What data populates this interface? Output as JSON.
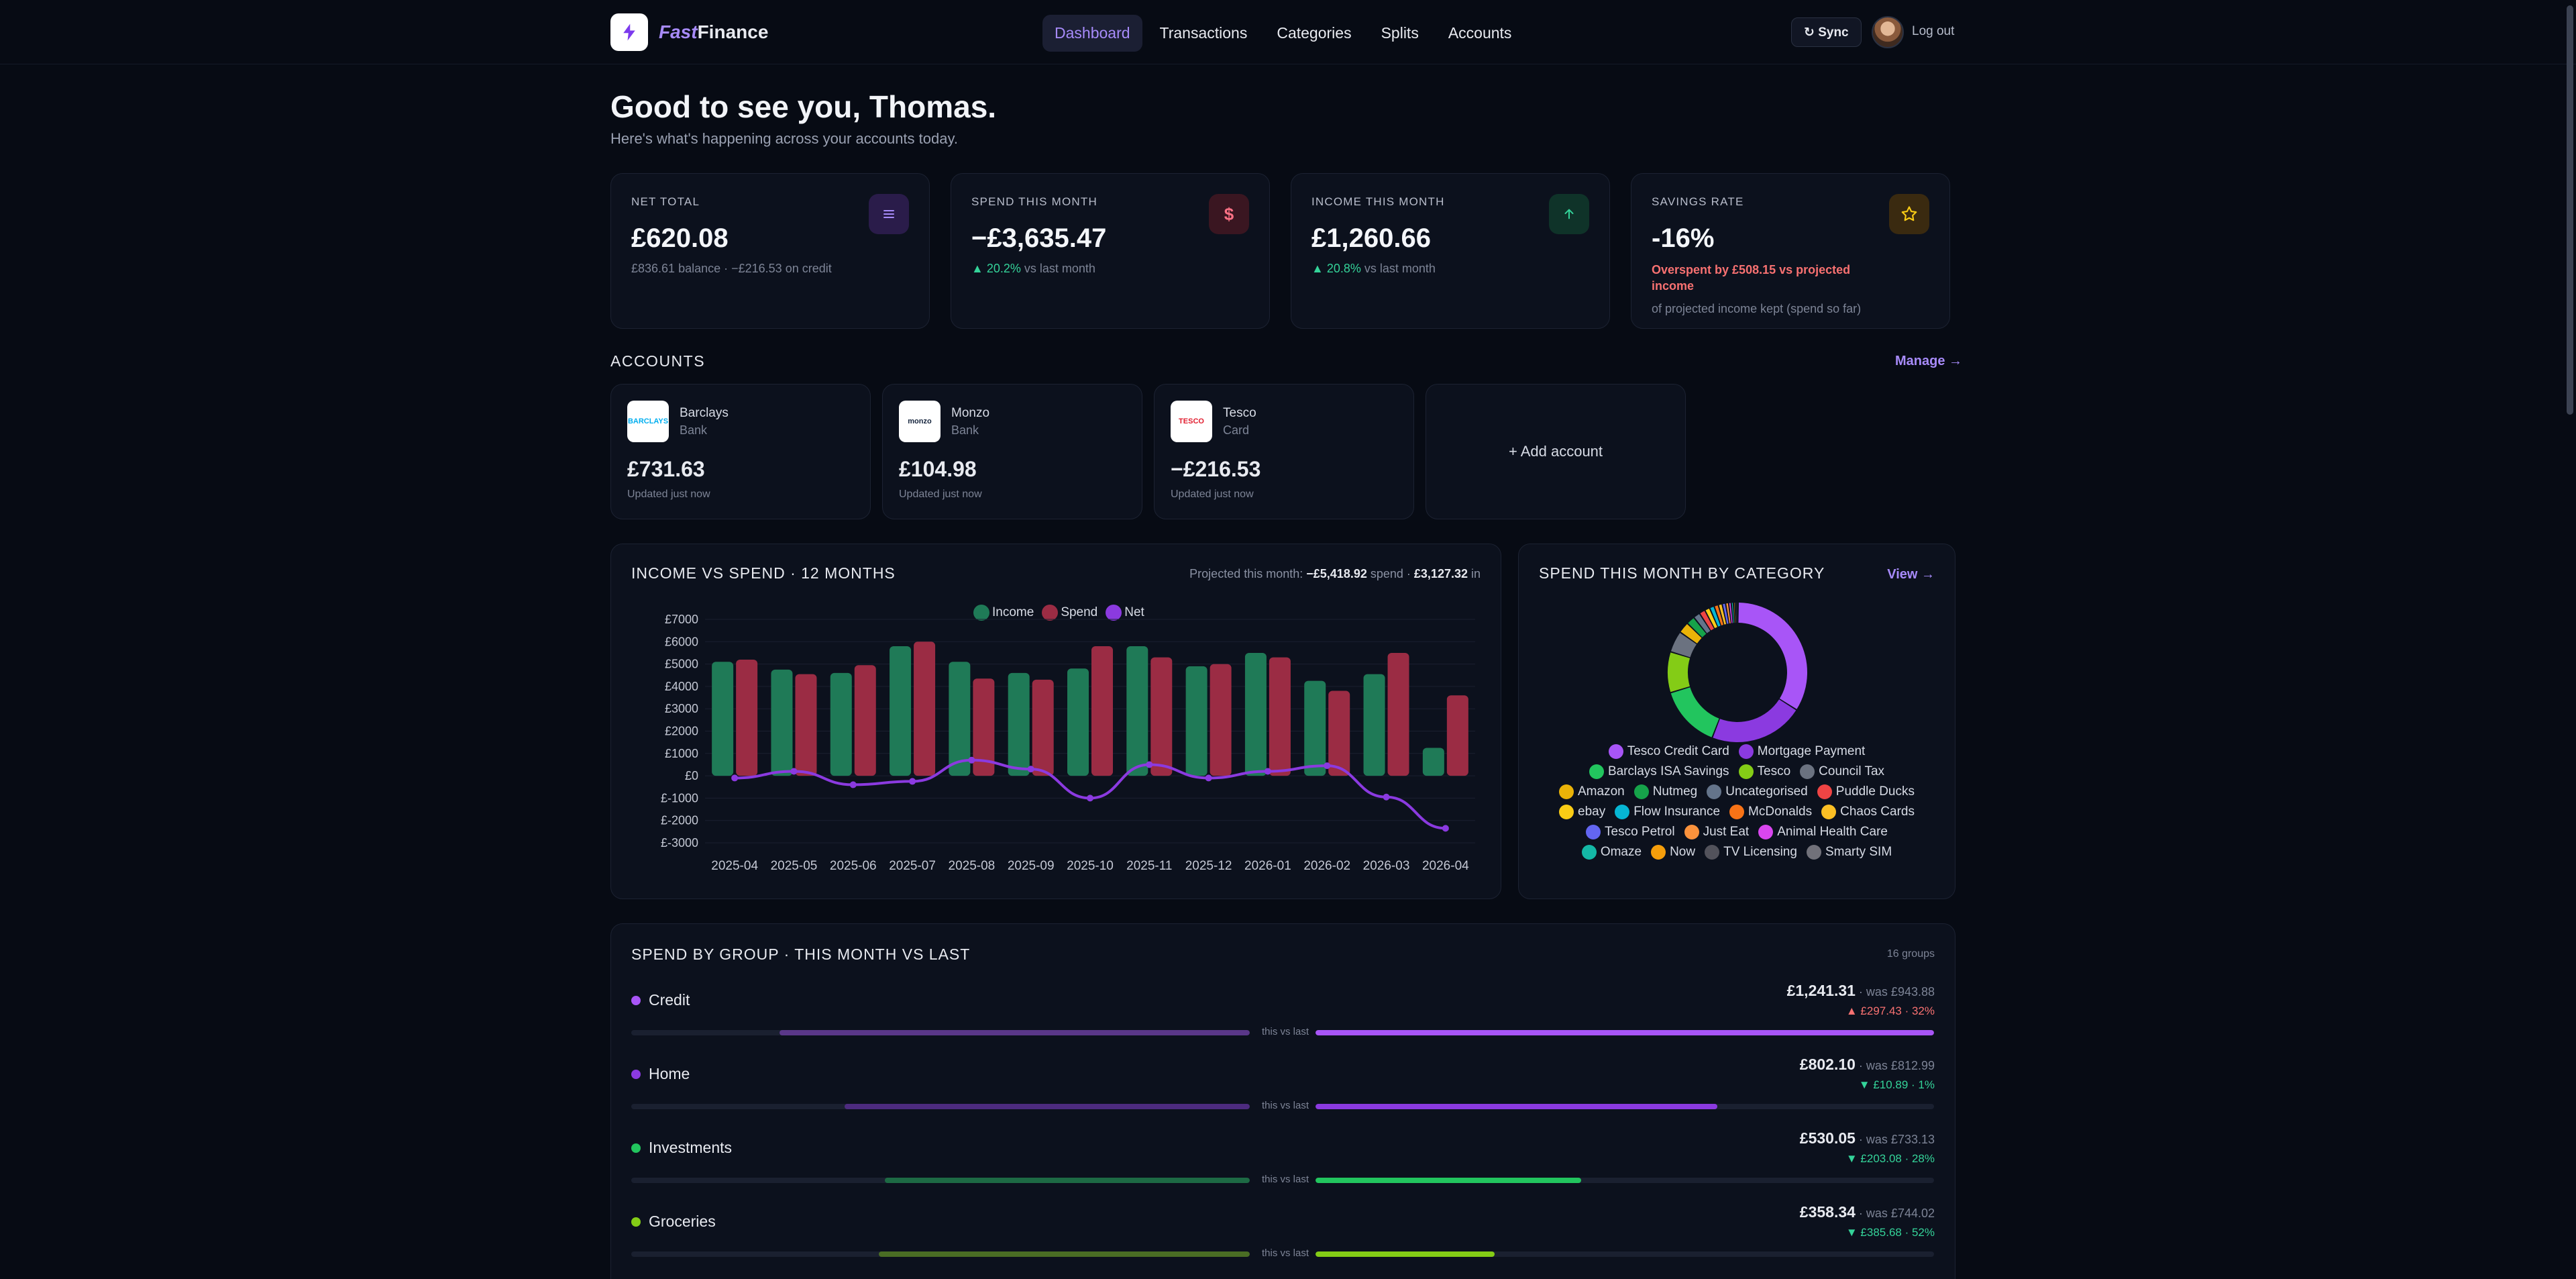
{
  "app": {
    "brand_fast": "Fast",
    "brand_finance": "Finance"
  },
  "nav": [
    {
      "label": "Dashboard",
      "active": true
    },
    {
      "label": "Transactions"
    },
    {
      "label": "Categories"
    },
    {
      "label": "Splits"
    },
    {
      "label": "Accounts"
    }
  ],
  "header": {
    "sync_label": "↻ Sync",
    "logout_label": "Log out"
  },
  "greeting": {
    "title": "Good to see you, Thomas.",
    "subtitle": "Here's what's happening across your accounts today."
  },
  "stats": {
    "net_total": {
      "label": "NET TOTAL",
      "value": "£620.08",
      "sub": "£836.61 balance · −£216.53 on credit",
      "icon": "menu-icon"
    },
    "spend": {
      "label": "SPEND THIS MONTH",
      "value": "−£3,635.47",
      "delta": "▲ 20.2%",
      "delta_suffix": " vs last month",
      "icon": "dollar-icon"
    },
    "income": {
      "label": "INCOME THIS MONTH",
      "value": "£1,260.66",
      "delta": "▲ 20.8%",
      "delta_suffix": " vs last month",
      "icon": "arrow-up-icon"
    },
    "savings": {
      "label": "SAVINGS RATE",
      "value": "-16%",
      "warning": "Overspent by £508.15 vs projected income",
      "sub": "of projected income kept (spend so far)",
      "icon": "star-icon"
    }
  },
  "accounts": {
    "title": "ACCOUNTS",
    "manage": "Manage →",
    "items": [
      {
        "name": "Barclays",
        "type": "Bank",
        "balance": "£731.63",
        "updated": "Updated just now",
        "logo_text": "BARCLAYS"
      },
      {
        "name": "Monzo",
        "type": "Bank",
        "balance": "£104.98",
        "updated": "Updated just now",
        "logo_text": "monzo"
      },
      {
        "name": "Tesco",
        "type": "Card",
        "balance": "−£216.53",
        "updated": "Updated just now",
        "logo_text": "TESCO"
      }
    ],
    "add": "+ Add account"
  },
  "income_chart": {
    "title": "INCOME VS SPEND · 12 MONTHS",
    "projection_prefix": "Projected this month: ",
    "projection_spend": "−£5,418.92",
    "projection_mid": " spend · ",
    "projection_income": "£3,127.32",
    "projection_suffix": " in"
  },
  "chart_data": {
    "type": "bar",
    "categories": [
      "2025-04",
      "2025-05",
      "2025-06",
      "2025-07",
      "2025-08",
      "2025-09",
      "2025-10",
      "2025-11",
      "2025-12",
      "2026-01",
      "2026-02",
      "2026-03",
      "2026-04"
    ],
    "series": [
      {
        "name": "Income",
        "type": "bar",
        "color": "#1f7a57",
        "values": [
          5100,
          4750,
          4600,
          5800,
          5100,
          4600,
          4800,
          5800,
          4900,
          5500,
          4250,
          4550,
          1250
        ]
      },
      {
        "name": "Spend",
        "type": "bar",
        "color": "#9b2c44",
        "values": [
          5200,
          4550,
          4950,
          6000,
          4350,
          4300,
          5800,
          5300,
          5000,
          5300,
          3800,
          5500,
          3600
        ]
      },
      {
        "name": "Net",
        "type": "line",
        "color": "#8b3ae0",
        "values": [
          -100,
          200,
          -400,
          -250,
          700,
          300,
          -1000,
          500,
          -100,
          200,
          450,
          -950,
          -2350
        ]
      }
    ],
    "yticks": [
      "£7000",
      "£6000",
      "£5000",
      "£4000",
      "£3000",
      "£2000",
      "£1000",
      "£0",
      "£-1000",
      "£-2000",
      "£-3000"
    ],
    "ylim": [
      -3000,
      7000
    ],
    "grid": true,
    "legend": "top-center"
  },
  "category_chart": {
    "title": "SPEND THIS MONTH BY CATEGORY",
    "view": "View →",
    "slices": [
      {
        "name": "Tesco Credit Card",
        "color": "#a855f7",
        "value": 34
      },
      {
        "name": "Mortgage Payment",
        "color": "#8b3ae0",
        "value": 22
      },
      {
        "name": "Barclays ISA Savings",
        "color": "#22c55e",
        "value": 14.5
      },
      {
        "name": "Tesco",
        "color": "#84cc16",
        "value": 9.5
      },
      {
        "name": "Council Tax",
        "color": "#6b7280",
        "value": 5
      },
      {
        "name": "Amazon",
        "color": "#eab308",
        "value": 2.6
      },
      {
        "name": "Nutmeg",
        "color": "#16a34a",
        "value": 2
      },
      {
        "name": "Uncategorised",
        "color": "#64748b",
        "value": 1.6
      },
      {
        "name": "Puddle Ducks",
        "color": "#ef4444",
        "value": 1.4
      },
      {
        "name": "ebay",
        "color": "#facc15",
        "value": 1.2
      },
      {
        "name": "Flow Insurance",
        "color": "#06b6d4",
        "value": 1.1
      },
      {
        "name": "McDonalds",
        "color": "#f97316",
        "value": 1
      },
      {
        "name": "Chaos Cards",
        "color": "#fbbf24",
        "value": 0.9
      },
      {
        "name": "Tesco Petrol",
        "color": "#6366f1",
        "value": 0.8
      },
      {
        "name": "Just Eat",
        "color": "#fb923c",
        "value": 0.7
      },
      {
        "name": "Animal Health Care",
        "color": "#d946ef",
        "value": 0.6
      },
      {
        "name": "Omaze",
        "color": "#14b8a6",
        "value": 0.5
      },
      {
        "name": "Now",
        "color": "#f59e0b",
        "value": 0.4
      },
      {
        "name": "TV Licensing",
        "color": "#52525b",
        "value": 0.4
      },
      {
        "name": "Smarty SIM",
        "color": "#71717a",
        "value": 0.3
      }
    ]
  },
  "groups": {
    "title": "SPEND BY GROUP · THIS MONTH VS LAST",
    "count": "16 groups",
    "mid_label": "this vs last",
    "items": [
      {
        "name": "Credit",
        "color": "#a855f7",
        "amount": "£1,241.31",
        "was": " · was £943.88",
        "delta": "▲ £297.43 · 32%",
        "delta_dir": "up",
        "this_frac": 1.0,
        "last_frac": 0.76
      },
      {
        "name": "Home",
        "color": "#8b3ae0",
        "amount": "£802.10",
        "was": " · was £812.99",
        "delta": "▼ £10.89 · 1%",
        "delta_dir": "down",
        "this_frac": 0.65,
        "last_frac": 0.655
      },
      {
        "name": "Investments",
        "color": "#22c55e",
        "amount": "£530.05",
        "was": " · was £733.13",
        "delta": "▼ £203.08 · 28%",
        "delta_dir": "down",
        "this_frac": 0.43,
        "last_frac": 0.59
      },
      {
        "name": "Groceries",
        "color": "#84cc16",
        "amount": "£358.34",
        "was": " · was £744.02",
        "delta": "▼ £385.68 · 52%",
        "delta_dir": "down",
        "this_frac": 0.29,
        "last_frac": 0.6
      }
    ]
  }
}
